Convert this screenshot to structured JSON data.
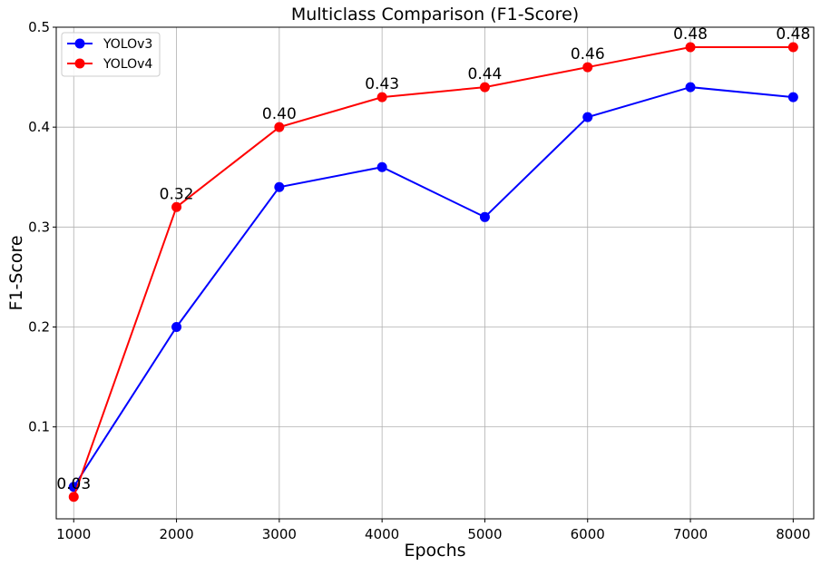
{
  "chart_data": {
    "type": "line",
    "title": "Multiclass Comparison (F1-Score)",
    "xlabel": "Epochs",
    "ylabel": "F1-Score",
    "x": [
      1000,
      2000,
      3000,
      4000,
      5000,
      6000,
      7000,
      8000
    ],
    "xticks": [
      "1000",
      "2000",
      "3000",
      "4000",
      "5000",
      "6000",
      "7000",
      "8000"
    ],
    "yticks": [
      "0.1",
      "0.2",
      "0.3",
      "0.4",
      "0.5"
    ],
    "xlim": [
      830,
      8200
    ],
    "ylim": [
      0.008,
      0.5
    ],
    "grid": true,
    "legend": "top-left",
    "series": [
      {
        "name": "YOLOv3",
        "color": "#0000ff",
        "values": [
          0.04,
          0.2,
          0.34,
          0.36,
          0.31,
          0.41,
          0.44,
          0.43
        ]
      },
      {
        "name": "YOLOv4",
        "color": "#ff0000",
        "values": [
          0.03,
          0.32,
          0.4,
          0.43,
          0.44,
          0.46,
          0.48,
          0.48
        ]
      }
    ],
    "data_labels": [
      "0.03",
      "0.32",
      "0.40",
      "0.43",
      "0.44",
      "0.46",
      "0.48",
      "0.48"
    ]
  }
}
